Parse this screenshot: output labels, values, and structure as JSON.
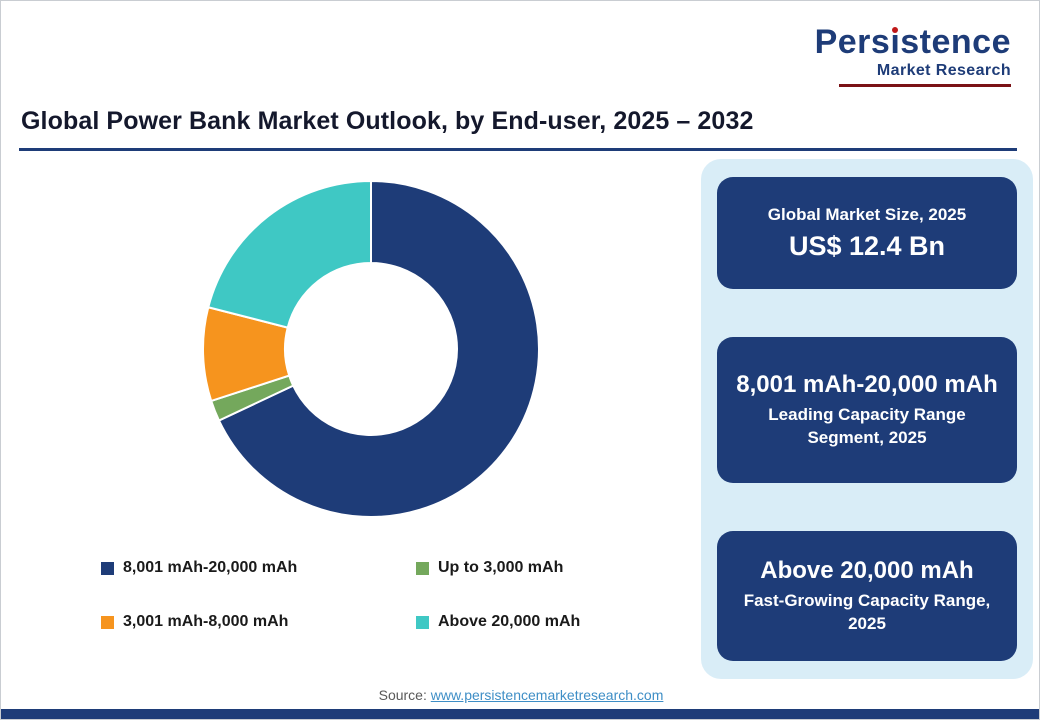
{
  "logo": {
    "part1": "Pers",
    "i": "ı",
    "part2": "stence",
    "line2": "Market Research"
  },
  "header": {
    "title": "Global Power Bank Market Outlook, by End-user, 2025 – 2032"
  },
  "chart_data": {
    "type": "pie",
    "donut": true,
    "title": "Global Power Bank Market Outlook, by End-user, 2025 – 2032",
    "categories": [
      "8,001 mAh-20,000 mAh",
      "Up to 3,000 mAh",
      "3,001 mAh-8,000 mAh",
      "Above 20,000 mAh"
    ],
    "values": [
      68,
      2,
      9,
      21
    ],
    "colors": [
      "#1e3c78",
      "#74a85c",
      "#f6941e",
      "#3fc8c4"
    ],
    "start_angle_deg": 0,
    "direction": "clockwise",
    "legend_position": "bottom"
  },
  "sidebar": {
    "cards": [
      {
        "top": "Global Market Size, 2025",
        "bottom": "US$ 12.4 Bn"
      },
      {
        "top": "8,001 mAh-20,000 mAh",
        "bottom": "Leading Capacity Range Segment, 2025"
      },
      {
        "top": "Above 20,000 mAh",
        "bottom": "Fast-Growing Capacity Range, 2025"
      }
    ]
  },
  "footer": {
    "source_label": "Source: ",
    "source_link": "www.persistencemarketresearch.com"
  }
}
